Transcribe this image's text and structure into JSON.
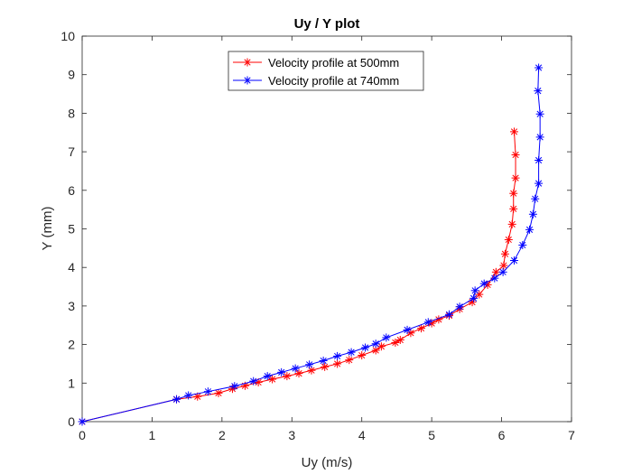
{
  "chart_data": {
    "type": "line",
    "title": "Uy / Y plot",
    "xlabel": "Uy (m/s)",
    "ylabel": "Y (mm)",
    "xlim": [
      0,
      7
    ],
    "ylim": [
      0,
      10
    ],
    "xticks": [
      0,
      1,
      2,
      3,
      4,
      5,
      6,
      7
    ],
    "yticks": [
      0,
      1,
      2,
      3,
      4,
      5,
      6,
      7,
      8,
      9,
      10
    ],
    "grid": false,
    "legend_position": "top-center",
    "marker": "asterisk",
    "series": [
      {
        "name": "Velocity profile at 500mm",
        "color": "#ff0000",
        "points": [
          [
            0,
            0
          ],
          [
            1.35,
            0.58
          ],
          [
            1.65,
            0.65
          ],
          [
            1.95,
            0.74
          ],
          [
            2.15,
            0.85
          ],
          [
            2.33,
            0.93
          ],
          [
            2.52,
            1.02
          ],
          [
            2.72,
            1.1
          ],
          [
            2.93,
            1.18
          ],
          [
            3.1,
            1.25
          ],
          [
            3.28,
            1.33
          ],
          [
            3.47,
            1.42
          ],
          [
            3.65,
            1.5
          ],
          [
            3.82,
            1.6
          ],
          [
            4.0,
            1.72
          ],
          [
            4.2,
            1.85
          ],
          [
            4.28,
            1.95
          ],
          [
            4.48,
            2.05
          ],
          [
            4.55,
            2.12
          ],
          [
            4.7,
            2.3
          ],
          [
            4.85,
            2.42
          ],
          [
            5.0,
            2.55
          ],
          [
            5.1,
            2.65
          ],
          [
            5.25,
            2.75
          ],
          [
            5.4,
            2.92
          ],
          [
            5.58,
            3.1
          ],
          [
            5.68,
            3.3
          ],
          [
            5.8,
            3.55
          ],
          [
            5.92,
            3.88
          ],
          [
            6.03,
            4.05
          ],
          [
            6.05,
            4.35
          ],
          [
            6.1,
            4.72
          ],
          [
            6.15,
            5.12
          ],
          [
            6.17,
            5.52
          ],
          [
            6.17,
            5.92
          ],
          [
            6.2,
            6.32
          ],
          [
            6.2,
            6.92
          ],
          [
            6.18,
            7.52
          ]
        ]
      },
      {
        "name": "Velocity profile at 740mm",
        "color": "#0000ff",
        "points": [
          [
            0,
            0
          ],
          [
            1.35,
            0.58
          ],
          [
            1.52,
            0.68
          ],
          [
            1.8,
            0.78
          ],
          [
            2.18,
            0.92
          ],
          [
            2.45,
            1.05
          ],
          [
            2.65,
            1.18
          ],
          [
            2.85,
            1.28
          ],
          [
            3.05,
            1.38
          ],
          [
            3.25,
            1.48
          ],
          [
            3.45,
            1.58
          ],
          [
            3.65,
            1.7
          ],
          [
            3.85,
            1.8
          ],
          [
            4.05,
            1.92
          ],
          [
            4.2,
            2.02
          ],
          [
            4.35,
            2.18
          ],
          [
            4.65,
            2.38
          ],
          [
            4.95,
            2.58
          ],
          [
            5.25,
            2.78
          ],
          [
            5.4,
            2.98
          ],
          [
            5.6,
            3.2
          ],
          [
            5.62,
            3.4
          ],
          [
            5.75,
            3.58
          ],
          [
            5.9,
            3.72
          ],
          [
            6.02,
            3.88
          ],
          [
            6.18,
            4.18
          ],
          [
            6.3,
            4.58
          ],
          [
            6.4,
            4.98
          ],
          [
            6.45,
            5.38
          ],
          [
            6.48,
            5.78
          ],
          [
            6.53,
            6.18
          ],
          [
            6.53,
            6.78
          ],
          [
            6.55,
            7.38
          ],
          [
            6.55,
            7.98
          ],
          [
            6.52,
            8.58
          ],
          [
            6.53,
            9.18
          ]
        ]
      }
    ]
  }
}
